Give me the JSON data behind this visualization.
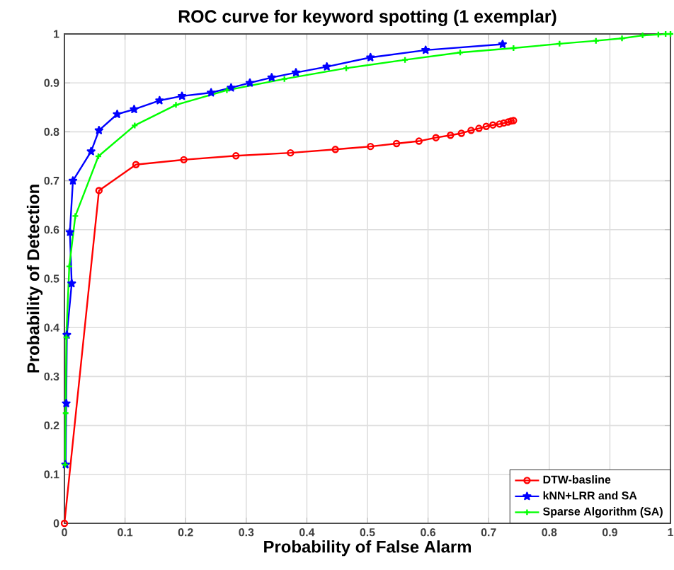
{
  "chart_data": {
    "type": "line",
    "title": "ROC curve for keyword spotting (1 exemplar)",
    "xlabel": "Probability of False Alarm",
    "ylabel": "Probability of Detection",
    "xlim": [
      0,
      1
    ],
    "ylim": [
      0,
      1
    ],
    "xticks": [
      0,
      0.1,
      0.2,
      0.3,
      0.4,
      0.5,
      0.6,
      0.7,
      0.8,
      0.9,
      1
    ],
    "yticks": [
      0,
      0.1,
      0.2,
      0.3,
      0.4,
      0.5,
      0.6,
      0.7,
      0.8,
      0.9,
      1
    ],
    "grid": true,
    "legend": "bottom right",
    "series": [
      {
        "name": "DTW-basline",
        "color": "#ff0000",
        "marker": "circle",
        "x": [
          0,
          0.057,
          0.118,
          0.197,
          0.283,
          0.373,
          0.447,
          0.505,
          0.548,
          0.585,
          0.613,
          0.637,
          0.655,
          0.671,
          0.684,
          0.696,
          0.707,
          0.718,
          0.725,
          0.732,
          0.737,
          0.741
        ],
        "values": [
          0,
          0.68,
          0.733,
          0.743,
          0.751,
          0.757,
          0.764,
          0.77,
          0.776,
          0.781,
          0.788,
          0.793,
          0.797,
          0.803,
          0.807,
          0.811,
          0.814,
          0.816,
          0.818,
          0.82,
          0.822,
          0.823
        ]
      },
      {
        "name": "kNN+LRR and SA",
        "color": "#0000ff",
        "marker": "star",
        "x": [
          0.002,
          0.003,
          0.004,
          0.012,
          0.009,
          0.014,
          0.044,
          0.057,
          0.087,
          0.115,
          0.157,
          0.194,
          0.242,
          0.275,
          0.306,
          0.342,
          0.382,
          0.433,
          0.505,
          0.596,
          0.723
        ],
        "values": [
          0.12,
          0.245,
          0.385,
          0.49,
          0.595,
          0.7,
          0.76,
          0.803,
          0.836,
          0.846,
          0.864,
          0.873,
          0.88,
          0.89,
          0.9,
          0.911,
          0.921,
          0.933,
          0.952,
          0.967,
          0.979
        ]
      },
      {
        "name": "Sparse Algorithm (SA)",
        "color": "#00ff00",
        "marker": "cross",
        "x": [
          0.001,
          0.002,
          0.003,
          0.008,
          0.018,
          0.056,
          0.116,
          0.184,
          0.268,
          0.363,
          0.465,
          0.562,
          0.653,
          0.741,
          0.817,
          0.877,
          0.92,
          0.954,
          0.98,
          0.992,
          1
        ],
        "values": [
          0.12,
          0.225,
          0.38,
          0.525,
          0.628,
          0.75,
          0.813,
          0.855,
          0.885,
          0.908,
          0.93,
          0.947,
          0.962,
          0.971,
          0.98,
          0.986,
          0.991,
          0.997,
          0.999,
          1,
          1
        ]
      }
    ]
  }
}
